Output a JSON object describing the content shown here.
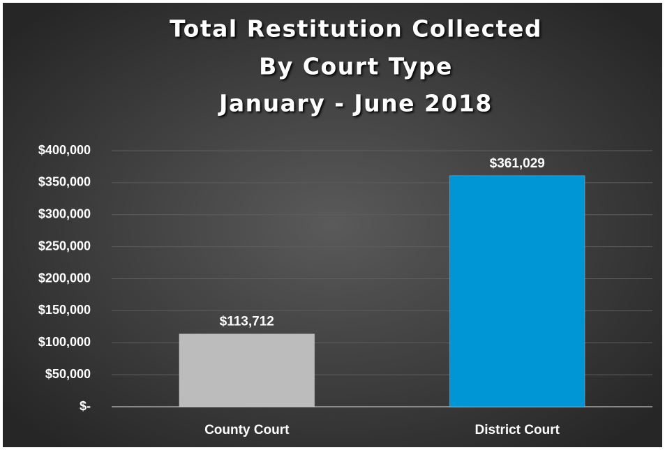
{
  "chart_data": {
    "type": "bar",
    "title": [
      "Total Restitution Collected",
      "By Court Type",
      "January - June 2018"
    ],
    "categories": [
      "County Court",
      "District Court"
    ],
    "values": [
      113712,
      361029
    ],
    "value_labels": [
      "$113,712",
      "$361,029"
    ],
    "colors": [
      "#bcbcbc",
      "#0096d6"
    ],
    "ylim": [
      0,
      400000
    ],
    "yticks": [
      {
        "value": 0,
        "label": "$-"
      },
      {
        "value": 50000,
        "label": "$50,000"
      },
      {
        "value": 100000,
        "label": "$100,000"
      },
      {
        "value": 150000,
        "label": "$150,000"
      },
      {
        "value": 200000,
        "label": "$200,000"
      },
      {
        "value": 250000,
        "label": "$250,000"
      },
      {
        "value": 300000,
        "label": "$300,000"
      },
      {
        "value": 350000,
        "label": "$350,000"
      },
      {
        "value": 400000,
        "label": "$400,000"
      }
    ],
    "grid": true
  }
}
